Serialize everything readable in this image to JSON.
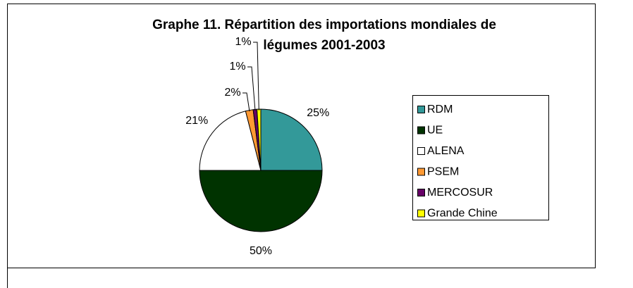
{
  "chart_data": {
    "type": "pie",
    "title": [
      "Graphe 11. Répartition des importations mondiales de",
      "légumes 2001-2003"
    ],
    "categories": [
      "RDM",
      "UE",
      "ALENA",
      "PSEM",
      "MERCOSUR",
      "Grande Chine"
    ],
    "values": [
      25,
      50,
      21,
      2,
      1,
      1
    ],
    "value_labels": [
      "25%",
      "50%",
      "21%",
      "2%",
      "1%",
      "1%"
    ],
    "colors": [
      "#339999",
      "#003300",
      "#ffffff",
      "#ff9933",
      "#660066",
      "#ffff00"
    ],
    "legend": "right"
  }
}
